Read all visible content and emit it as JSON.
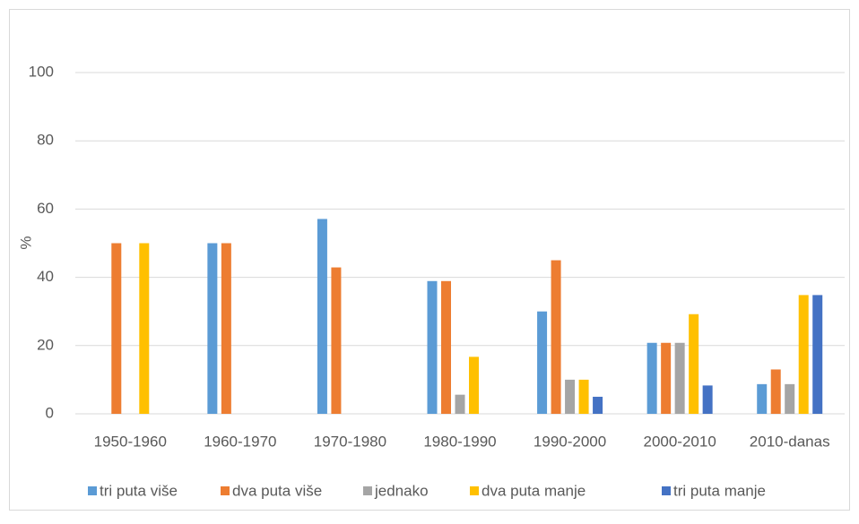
{
  "chart_data": {
    "type": "bar",
    "y_label": "%",
    "categories": [
      "1950-1960",
      "1960-1970",
      "1970-1980",
      "1980-1990",
      "1990-2000",
      "2000-2010",
      "2010-danas"
    ],
    "series": [
      {
        "name": "tri puta više",
        "color": "#5b9bd5",
        "values": [
          0,
          50,
          57.1,
          38.9,
          30,
          20.8,
          8.7
        ]
      },
      {
        "name": "dva puta više",
        "color": "#ed7d31",
        "values": [
          50,
          50,
          42.9,
          38.9,
          45,
          20.8,
          13
        ]
      },
      {
        "name": "jednako",
        "color": "#a5a5a5",
        "values": [
          0,
          0,
          0,
          5.6,
          10,
          20.8,
          8.7
        ]
      },
      {
        "name": "dva puta manje",
        "color": "#ffc000",
        "values": [
          50,
          0,
          0,
          16.7,
          10,
          29.2,
          34.8
        ]
      },
      {
        "name": "tri puta manje",
        "color": "#4472c4",
        "values": [
          0,
          0,
          0,
          0,
          5,
          8.3,
          34.8
        ]
      }
    ],
    "ylim": [
      0,
      100
    ],
    "yticks": [
      0,
      20,
      40,
      60,
      80,
      100
    ],
    "grid": true,
    "legend": "bottom"
  }
}
